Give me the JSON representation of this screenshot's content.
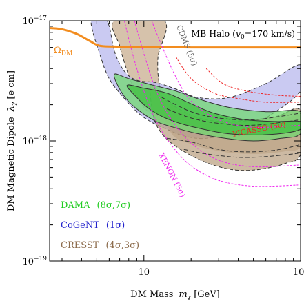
{
  "chart_data": {
    "type": "line",
    "title": "",
    "xlabel": "DM Mass",
    "xlabel_symbol": "m",
    "xlabel_symbol_sub": "χ",
    "xlabel_unit": "[GeV]",
    "ylabel": "DM Magnetic Dipole",
    "ylabel_symbol": "λ",
    "ylabel_symbol_sub": "χ",
    "ylabel_unit": "[e cm]",
    "x_scale": "log",
    "y_scale": "log",
    "xlim": [
      2.5,
      100
    ],
    "ylim": [
      1e-19,
      1e-17
    ],
    "x_ticks": [
      {
        "value": 10,
        "label": "10",
        "sup": ""
      },
      {
        "value": 100,
        "label": "10",
        "sup": "2"
      }
    ],
    "y_ticks": [
      {
        "value": 1e-17,
        "label": "10",
        "sup": "−17"
      },
      {
        "value": 1e-18,
        "label": "10",
        "sup": "−18"
      },
      {
        "value": 1e-19,
        "label": "10",
        "sup": "−19"
      }
    ],
    "annotations": {
      "halo": {
        "text": "MB Halo (",
        "symbol": "v",
        "sub": "0",
        "rest": "=170 km/s)"
      },
      "omega": {
        "text": "Ω",
        "sub": "DM"
      },
      "cdms": "CDMS (5σ)",
      "picasso": "PICASSO (5σ)",
      "xenon": "XENON (5σ)"
    },
    "legend_placement": "bottom-left",
    "legend": [
      {
        "name": "DAMA",
        "label": "(8σ,7σ)",
        "color": "#22cc22"
      },
      {
        "name": "CoGeNT",
        "label": "(1σ)",
        "color": "#2222cc"
      },
      {
        "name": "CRESST",
        "label": "(4σ,3σ)",
        "color": "#8b6a4a"
      }
    ],
    "colors": {
      "omega": "#f28c1e",
      "cdms_fill": "#c8ad8f",
      "cogent_fill": "#b8b8ee",
      "cresst_fill": "#b89c7c",
      "dama_outer": "#70d870",
      "dama_inner": "#3fbf3f",
      "dama_band": "#5cc89a",
      "xenon": "#ee22ee",
      "picasso": "#ee2222"
    },
    "series": [
      {
        "name": "Ω_DM",
        "points": [
          [
            2.5,
            8.7e-18
          ],
          [
            3.0,
            8.5e-18
          ],
          [
            3.7,
            7.8e-18
          ],
          [
            4.5,
            6.8e-18
          ],
          [
            5.2,
            6.2e-18
          ],
          [
            6.5,
            6.1e-18
          ],
          [
            10,
            6.05e-18
          ],
          [
            20,
            6e-18
          ],
          [
            50,
            6e-18
          ],
          [
            100,
            6e-18
          ]
        ]
      },
      {
        "name": "XENON (5σ) inner",
        "points": [
          [
            7.5,
            1e-17
          ],
          [
            8.5,
            5.2e-18
          ],
          [
            10,
            2.6e-18
          ],
          [
            12,
            1.45e-18
          ],
          [
            15,
            9.2e-19
          ],
          [
            20,
            6.2e-19
          ],
          [
            30,
            4.7e-19
          ],
          [
            50,
            4.2e-19
          ],
          [
            100,
            4.3e-19
          ]
        ]
      },
      {
        "name": "XENON (5σ) mid",
        "points": [
          [
            8.7,
            1e-17
          ],
          [
            10,
            5.3e-18
          ],
          [
            12,
            2.6e-18
          ],
          [
            15,
            1.5e-18
          ],
          [
            20,
            9.6e-19
          ],
          [
            30,
            6.9e-19
          ],
          [
            50,
            6.1e-19
          ],
          [
            100,
            6.3e-19
          ]
        ]
      },
      {
        "name": "XENON (5σ) outer",
        "points": [
          [
            11.2,
            1e-17
          ],
          [
            13,
            6.2e-18
          ],
          [
            16,
            3.4e-18
          ],
          [
            20,
            2.15e-18
          ],
          [
            30,
            1.5e-18
          ],
          [
            50,
            1.3e-18
          ],
          [
            100,
            1.35e-18
          ]
        ]
      },
      {
        "name": "PICASSO (5σ) a",
        "points": [
          [
            16,
            5e-18
          ],
          [
            20,
            3.3e-18
          ],
          [
            28,
            2.5e-18
          ],
          [
            40,
            2.25e-18
          ],
          [
            60,
            2.1e-18
          ],
          [
            100,
            2.1e-18
          ]
        ]
      },
      {
        "name": "PICASSO (5σ) b",
        "points": [
          [
            25,
            4e-18
          ],
          [
            32,
            3e-18
          ],
          [
            45,
            2.6e-18
          ],
          [
            70,
            2.4e-18
          ],
          [
            100,
            2.35e-18
          ]
        ]
      }
    ],
    "regions": [
      {
        "name": "CDMS (5σ)",
        "boundary": [
          [
            6.5,
            1e-17
          ],
          [
            13.5,
            1e-17
          ],
          [
            12.3,
            5e-18
          ],
          [
            12.5,
            3e-18
          ],
          [
            13.5,
            2.1e-18
          ],
          [
            16,
            1.7e-18
          ],
          [
            19,
            1.55e-18
          ],
          [
            14.5,
            1.6e-18
          ],
          [
            11.5,
            1.65e-18
          ],
          [
            10,
            1.9e-18
          ],
          [
            9,
            2.4e-18
          ],
          [
            8.2,
            3.2e-18
          ],
          [
            7.5,
            4.5e-18
          ],
          [
            7,
            6.2e-18
          ]
        ]
      },
      {
        "name": "CoGeNT (1σ)",
        "boundary": [
          [
            4.6,
            1e-17
          ],
          [
            5.8,
            1e-17
          ],
          [
            6.5,
            5.5e-18
          ],
          [
            7.5,
            3.8e-18
          ],
          [
            9,
            3.2e-18
          ],
          [
            12,
            3.05e-18
          ],
          [
            16,
            2.7e-18
          ],
          [
            22,
            2.3e-18
          ],
          [
            35,
            2.3e-18
          ],
          [
            60,
            3e-18
          ],
          [
            100,
            4.3e-18
          ],
          [
            100,
            2.6e-18
          ],
          [
            60,
            1.55e-18
          ],
          [
            40,
            1.2e-18
          ],
          [
            25,
            1.05e-18
          ],
          [
            18,
            1.1e-18
          ],
          [
            14,
            1.25e-18
          ],
          [
            11,
            1.45e-18
          ],
          [
            9,
            1.75e-18
          ],
          [
            7.2,
            2.4e-18
          ],
          [
            6,
            3.3e-18
          ],
          [
            5.3,
            5e-18
          ]
        ]
      },
      {
        "name": "CRESST (4σ)",
        "boundary": [
          [
            11,
            2.9e-18
          ],
          [
            13,
            2.3e-18
          ],
          [
            18,
            1.75e-18
          ],
          [
            25,
            1.5e-18
          ],
          [
            40,
            1.45e-18
          ],
          [
            70,
            1.6e-18
          ],
          [
            100,
            1.8e-18
          ],
          [
            100,
            7.8e-19
          ],
          [
            80,
            6.5e-19
          ],
          [
            55,
            5.8e-19
          ],
          [
            40,
            5.7e-19
          ],
          [
            30,
            6.1e-19
          ],
          [
            22,
            7.1e-19
          ],
          [
            16,
            9e-19
          ],
          [
            13,
            1.15e-18
          ],
          [
            11.5,
            1.6e-18
          ]
        ]
      },
      {
        "name": "CRESST (3σ)",
        "boundary": [
          [
            13,
            2.1e-18
          ],
          [
            18,
            1.65e-18
          ],
          [
            25,
            1.4e-18
          ],
          [
            40,
            1.35e-18
          ],
          [
            70,
            1.45e-18
          ],
          [
            100,
            1.6e-18
          ],
          [
            100,
            9e-19
          ],
          [
            80,
            8.2e-19
          ],
          [
            55,
            7.8e-19
          ],
          [
            38,
            7.9e-19
          ],
          [
            28,
            8.4e-19
          ],
          [
            20,
            9.4e-19
          ],
          [
            15,
            1.15e-18
          ]
        ]
      },
      {
        "name": "DAMA (8σ)",
        "boundary": [
          [
            6.5,
            3.6e-18
          ],
          [
            8,
            3.3e-18
          ],
          [
            11,
            2.95e-18
          ],
          [
            16,
            2.6e-18
          ],
          [
            22,
            2.25e-18
          ],
          [
            35,
            1.9e-18
          ],
          [
            60,
            1.75e-18
          ],
          [
            100,
            1.75e-18
          ],
          [
            100,
            1.15e-18
          ],
          [
            75,
            1.05e-18
          ],
          [
            50,
            1e-18
          ],
          [
            33,
            1.05e-18
          ],
          [
            22,
            1.15e-18
          ],
          [
            16,
            1.28e-18
          ],
          [
            12,
            1.45e-18
          ],
          [
            9.5,
            1.75e-18
          ],
          [
            7.8,
            2.2e-18
          ],
          [
            6.8,
            2.9e-18
          ]
        ]
      },
      {
        "name": "DAMA (7σ)",
        "boundary": [
          [
            7.8,
            2.9e-18
          ],
          [
            10,
            2.75e-18
          ],
          [
            14,
            2.5e-18
          ],
          [
            19,
            2.1e-18
          ],
          [
            28,
            1.7e-18
          ],
          [
            45,
            1.5e-18
          ],
          [
            70,
            1.45e-18
          ],
          [
            100,
            1.45e-18
          ],
          [
            100,
            1.25e-18
          ],
          [
            75,
            1.15e-18
          ],
          [
            50,
            1.12e-18
          ],
          [
            34,
            1.15e-18
          ],
          [
            24,
            1.25e-18
          ],
          [
            17,
            1.4e-18
          ],
          [
            13,
            1.6e-18
          ],
          [
            10.5,
            1.9e-18
          ],
          [
            9,
            2.3e-18
          ]
        ]
      }
    ],
    "dashed_lines": [
      {
        "name": "CRESST upper band 1",
        "points": [
          [
            13,
            2.3e-18
          ],
          [
            20,
            1.75e-18
          ],
          [
            30,
            1.55e-18
          ],
          [
            50,
            1.5e-18
          ],
          [
            100,
            1.7e-18
          ]
        ]
      },
      {
        "name": "CRESST upper band 2",
        "points": [
          [
            14,
            1.85e-18
          ],
          [
            20,
            1.55e-18
          ],
          [
            30,
            1.4e-18
          ],
          [
            50,
            1.35e-18
          ],
          [
            100,
            1.5e-18
          ]
        ]
      },
      {
        "name": "CRESST lower band 1",
        "points": [
          [
            14,
            1.05e-18
          ],
          [
            20,
            9.8e-19
          ],
          [
            30,
            8.5e-19
          ],
          [
            45,
            8.1e-19
          ],
          [
            70,
            8.4e-19
          ],
          [
            100,
            9.3e-19
          ]
        ]
      },
      {
        "name": "CRESST lower band 2",
        "points": [
          [
            18,
            8.5e-19
          ],
          [
            25,
            7.8e-19
          ],
          [
            40,
            7.3e-19
          ],
          [
            60,
            7.4e-19
          ],
          [
            100,
            7.9e-19
          ]
        ]
      }
    ]
  }
}
